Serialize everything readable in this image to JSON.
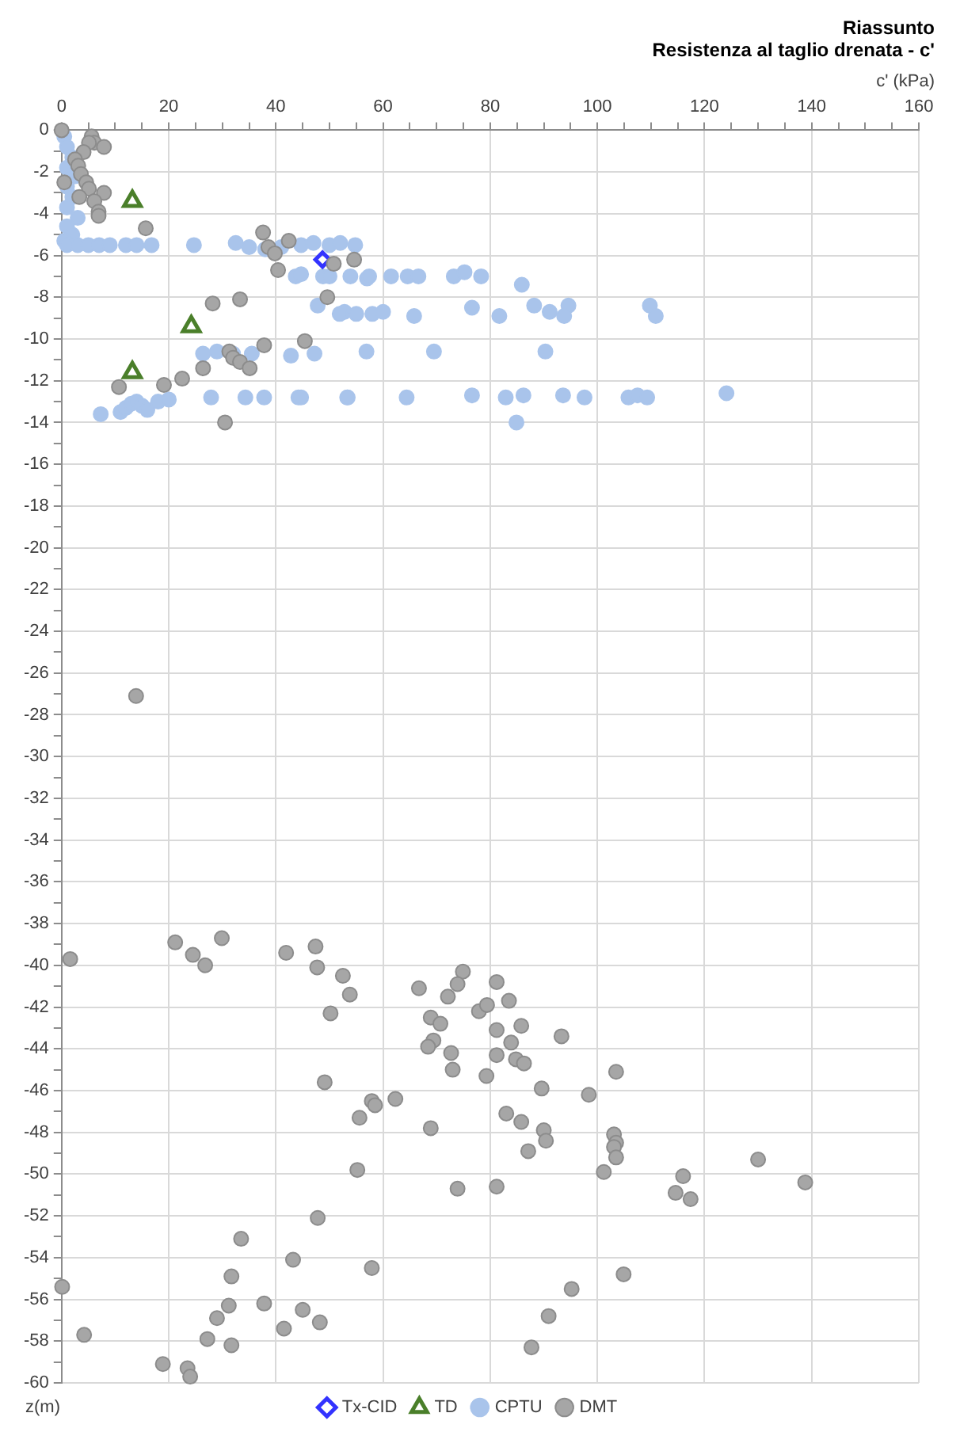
{
  "chart_data": {
    "type": "scatter",
    "title": "Riassunto",
    "subtitle": "Resistenza al taglio drenata - c'",
    "xlabel": "c' (kPa)",
    "ylabel": "z(m)",
    "xlim": [
      0,
      160
    ],
    "ylim": [
      -60,
      0
    ],
    "xticks": [
      0,
      {
        "value": 5,
        "label": null
      },
      {
        "value": 10,
        "label": null
      },
      {
        "value": 15,
        "label": null
      },
      20,
      {
        "value": 25,
        "label": null
      },
      {
        "value": 30,
        "label": null
      },
      {
        "value": 35,
        "label": null
      },
      40,
      {
        "value": 45,
        "label": null
      },
      {
        "value": 50,
        "label": null
      },
      {
        "value": 55,
        "label": null
      },
      60,
      {
        "value": 65,
        "label": null
      },
      {
        "value": 70,
        "label": null
      },
      {
        "value": 75,
        "label": null
      },
      80,
      {
        "value": 85,
        "label": null
      },
      {
        "value": 90,
        "label": null
      },
      {
        "value": 95,
        "label": null
      },
      100,
      {
        "value": 105,
        "label": null
      },
      {
        "value": 110,
        "label": null
      },
      {
        "value": 115,
        "label": null
      },
      120,
      {
        "value": 125,
        "label": null
      },
      {
        "value": 130,
        "label": null
      },
      {
        "value": 135,
        "label": null
      },
      140,
      {
        "value": 145,
        "label": null
      },
      {
        "value": 150,
        "label": null
      },
      {
        "value": 155,
        "label": null
      },
      160
    ],
    "yticks": [
      -60,
      {
        "value": -59,
        "label": null
      },
      -58,
      {
        "value": -57,
        "label": null
      },
      -56,
      {
        "value": -55,
        "label": null
      },
      -54,
      {
        "value": -53,
        "label": null
      },
      -52,
      {
        "value": -51,
        "label": null
      },
      -50,
      {
        "value": -49,
        "label": null
      },
      -48,
      {
        "value": -47,
        "label": null
      },
      -46,
      {
        "value": -45,
        "label": null
      },
      -44,
      {
        "value": -43,
        "label": null
      },
      -42,
      {
        "value": -41,
        "label": null
      },
      -40,
      {
        "value": -39,
        "label": null
      },
      -38,
      {
        "value": -37,
        "label": null
      },
      -36,
      {
        "value": -35,
        "label": null
      },
      -34,
      {
        "value": -33,
        "label": null
      },
      -32,
      {
        "value": -31,
        "label": null
      },
      -30,
      {
        "value": -29,
        "label": null
      },
      -28,
      {
        "value": -27,
        "label": null
      },
      -26,
      {
        "value": -25,
        "label": null
      },
      -24,
      {
        "value": -23,
        "label": null
      },
      -22,
      {
        "value": -21,
        "label": null
      },
      -20,
      {
        "value": -19,
        "label": null
      },
      -18,
      {
        "value": -17,
        "label": null
      },
      -16,
      {
        "value": -15,
        "label": null
      },
      -14,
      {
        "value": -13,
        "label": null
      },
      -12,
      {
        "value": -11,
        "label": null
      },
      -10,
      {
        "value": -9,
        "label": null
      },
      -8,
      {
        "value": -7,
        "label": null
      },
      -6,
      {
        "value": -5,
        "label": null
      },
      -4,
      {
        "value": -3,
        "label": null
      },
      -2,
      {
        "value": -1,
        "label": null
      },
      0
    ],
    "grid": true,
    "legend": "bottom",
    "series": [
      {
        "name": "Tx-CID",
        "color": "#3333ff",
        "marker": "diamond",
        "x": [
          48.7
        ],
        "values": [
          -6.2
        ]
      },
      {
        "name": "TD",
        "color": "#4a7f2a",
        "marker": "triangle",
        "x": [
          13.2,
          24.2,
          13.2
        ],
        "values": [
          -3.4,
          -9.4,
          -11.6
        ]
      },
      {
        "name": "CPTU",
        "color": "#a9c4eb",
        "marker": "circle",
        "x": [
          0.5,
          1,
          2,
          1,
          2.5,
          1,
          2,
          1,
          3,
          1,
          2,
          0.5,
          1,
          3,
          5,
          7,
          9,
          12,
          14,
          16.8,
          24.7,
          32.5,
          35,
          38,
          41,
          44.7,
          47,
          50,
          52,
          54.8,
          43.7,
          44.7,
          48.8,
          50,
          53.9,
          57,
          57.4,
          61.5,
          64.6,
          66.6,
          73.2,
          75.2,
          78.3,
          85.9,
          47.8,
          52.8,
          51.9,
          55,
          58,
          60,
          65.8,
          76.6,
          81.7,
          88.2,
          91.1,
          94.6,
          93.8,
          109.8,
          110.9,
          26.4,
          29,
          32,
          35.5,
          42.8,
          47.2,
          56.9,
          69.5,
          90.3,
          7.3,
          11,
          12,
          13,
          14,
          15,
          16,
          18,
          20,
          27.9,
          34.3,
          37.8,
          44.2,
          44.7,
          53.3,
          53.4,
          64.4,
          76.6,
          82.9,
          86.2,
          93.6,
          97.6,
          105.8,
          107.5,
          109.3,
          124.1,
          84.9
        ],
        "values": [
          -0.3,
          -0.8,
          -1.3,
          -1.8,
          -2.2,
          -2.7,
          -3.2,
          -3.7,
          -4.2,
          -4.6,
          -5,
          -5.3,
          -5.5,
          -5.5,
          -5.5,
          -5.5,
          -5.5,
          -5.5,
          -5.5,
          -5.5,
          -5.5,
          -5.4,
          -5.6,
          -5.7,
          -5.6,
          -5.5,
          -5.4,
          -5.5,
          -5.4,
          -5.5,
          -7,
          -6.9,
          -7,
          -7,
          -7,
          -7.1,
          -7,
          -7,
          -7,
          -7,
          -7,
          -6.8,
          -7,
          -7.4,
          -8.4,
          -8.7,
          -8.8,
          -8.8,
          -8.8,
          -8.7,
          -8.9,
          -8.5,
          -8.9,
          -8.4,
          -8.7,
          -8.4,
          -8.9,
          -8.4,
          -8.9,
          -10.7,
          -10.6,
          -10.7,
          -10.7,
          -10.8,
          -10.7,
          -10.6,
          -10.6,
          -10.6,
          -13.6,
          -13.5,
          -13.3,
          -13.1,
          -13,
          -13.2,
          -13.4,
          -13,
          -12.9,
          -12.8,
          -12.8,
          -12.8,
          -12.8,
          -12.8,
          -12.8,
          -12.8,
          -12.8,
          -12.7,
          -12.8,
          -12.7,
          -12.7,
          -12.8,
          -12.8,
          -12.7,
          -12.8,
          -12.6,
          -14
        ]
      },
      {
        "name": "DMT",
        "color": "#a6a6a6",
        "marker": "circle",
        "x": [
          0,
          5.6,
          6.1,
          7.9,
          5.1,
          4.1,
          2.5,
          3.1,
          3.6,
          4.6,
          0.5,
          5.1,
          7.9,
          3.3,
          6.1,
          6.9,
          6.9,
          15.7,
          37.6,
          38.6,
          42.4,
          39.8,
          40.4,
          50.8,
          54.6,
          49.6,
          28.2,
          33.3,
          45.4,
          37.8,
          31.3,
          32,
          33.3,
          35.1,
          26.4,
          22.5,
          19.1,
          10.7,
          30.5,
          13.9,
          21.2,
          29.9,
          1.6,
          24.5,
          26.8,
          41.9,
          47.4,
          47.7,
          52.5,
          53.8,
          50.2,
          66.7,
          74.9,
          73.9,
          72.1,
          68.9,
          70.7,
          69.4,
          68.4,
          72.7,
          73,
          49.1,
          57.9,
          58.5,
          62.3,
          55.6,
          68.9,
          55.2,
          73.9,
          47.8,
          33.5,
          43.2,
          57.9,
          31.7,
          0.1,
          31.2,
          37.8,
          45,
          48.2,
          29,
          41.5,
          4.2,
          27.2,
          31.7,
          18.9,
          23.5,
          24,
          81.2,
          83.5,
          77.9,
          79.4,
          81.2,
          85.8,
          93.3,
          83.9,
          81.2,
          84.8,
          86.3,
          79.3,
          89.6,
          103.5,
          98.4,
          83,
          85.8,
          90,
          90.4,
          87.1,
          103.1,
          103.5,
          103.1,
          103.5,
          101.2,
          81.2,
          130,
          138.8,
          116,
          114.6,
          117.4,
          104.9,
          95.2,
          90.9,
          87.7
        ],
        "values": [
          0,
          -0.3,
          -0.6,
          -0.8,
          -0.6,
          -1.05,
          -1.4,
          -1.7,
          -2.1,
          -2.5,
          -2.5,
          -2.8,
          -3,
          -3.2,
          -3.4,
          -3.9,
          -4.1,
          -4.7,
          -4.9,
          -5.6,
          -5.3,
          -5.9,
          -6.7,
          -6.4,
          -6.2,
          -8,
          -8.3,
          -8.1,
          -10.1,
          -10.3,
          -10.6,
          -10.9,
          -11.1,
          -11.4,
          -11.4,
          -11.9,
          -12.2,
          -12.3,
          -14,
          -27.1,
          -38.9,
          -38.7,
          -39.7,
          -39.5,
          -40,
          -39.4,
          -39.1,
          -40.1,
          -40.5,
          -41.4,
          -42.3,
          -41.1,
          -40.3,
          -40.9,
          -41.5,
          -42.5,
          -42.8,
          -43.6,
          -43.9,
          -44.2,
          -45,
          -45.6,
          -46.5,
          -46.7,
          -46.4,
          -47.3,
          -47.8,
          -49.8,
          -50.7,
          -52.1,
          -53.1,
          -54.1,
          -54.5,
          -54.9,
          -55.4,
          -56.3,
          -56.2,
          -56.5,
          -57.1,
          -56.9,
          -57.4,
          -57.7,
          -57.9,
          -58.2,
          -59.1,
          -59.3,
          -59.7,
          -40.8,
          -41.7,
          -42.2,
          -41.9,
          -43.1,
          -42.9,
          -43.4,
          -43.7,
          -44.3,
          -44.5,
          -44.7,
          -45.3,
          -45.9,
          -45.1,
          -46.2,
          -47.1,
          -47.5,
          -47.9,
          -48.4,
          -48.9,
          -48.1,
          -48.5,
          -48.7,
          -49.2,
          -49.9,
          -50.6,
          -49.3,
          -50.4,
          -50.1,
          -50.9,
          -51.2,
          -54.8,
          -55.5,
          -56.8,
          -58.3
        ]
      }
    ]
  }
}
